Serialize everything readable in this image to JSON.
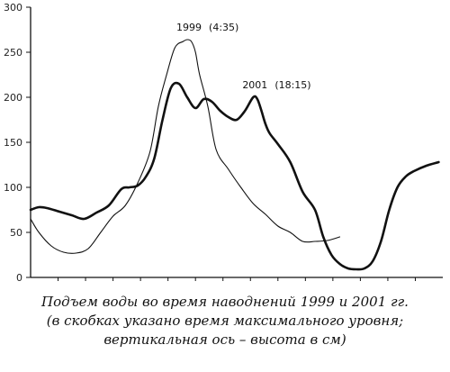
{
  "chart_data": {
    "type": "line",
    "ylim": [
      0,
      300
    ],
    "yticks": [
      "0",
      "50",
      "100",
      "150",
      "200",
      "250",
      "300"
    ],
    "xrange": [
      0,
      100
    ],
    "series": [
      {
        "name": "1999",
        "style": "thin",
        "x": [
          0,
          2,
          5,
          8,
          11,
          14,
          17,
          20,
          23,
          26,
          29,
          31,
          33,
          35,
          37,
          38,
          39,
          40,
          41,
          43,
          45,
          48,
          51,
          54,
          57,
          60,
          63,
          66,
          69,
          72,
          75
        ],
        "y": [
          65,
          50,
          35,
          28,
          27,
          32,
          50,
          68,
          80,
          105,
          140,
          190,
          225,
          255,
          262,
          264,
          262,
          250,
          225,
          190,
          142,
          120,
          100,
          82,
          70,
          57,
          50,
          40,
          40,
          41,
          45
        ]
      },
      {
        "name": "2001",
        "style": "thick",
        "x": [
          0,
          2,
          4,
          7,
          10,
          13,
          16,
          19,
          22,
          24,
          26,
          28,
          30,
          32,
          34,
          36,
          38,
          40,
          42,
          44,
          46,
          48,
          50,
          52,
          54,
          55,
          56,
          57,
          58,
          60,
          63,
          66,
          69,
          71,
          73,
          75,
          77,
          79,
          81,
          83,
          85,
          87,
          89,
          91,
          93,
          96,
          99
        ],
        "y": [
          75,
          78,
          77,
          73,
          69,
          65,
          72,
          80,
          98,
          100,
          102,
          112,
          132,
          175,
          210,
          215,
          200,
          188,
          198,
          195,
          185,
          178,
          175,
          185,
          200,
          198,
          185,
          170,
          160,
          148,
          128,
          95,
          75,
          45,
          25,
          15,
          10,
          9,
          10,
          18,
          40,
          75,
          100,
          112,
          118,
          124,
          128
        ]
      }
    ],
    "annotations": [
      {
        "text": "1999",
        "series": "1999"
      },
      {
        "text": "(4:35)",
        "series": "1999"
      },
      {
        "text": "2001",
        "series": "2001"
      },
      {
        "text": "(18:15)",
        "series": "2001"
      }
    ]
  },
  "caption": {
    "line1": "Подъем воды во время наводнений 1999 и 2001 гг.",
    "line2": "(в скобках указано время максимального уровня;",
    "line3": "вертикальная ось – высота в см)"
  }
}
